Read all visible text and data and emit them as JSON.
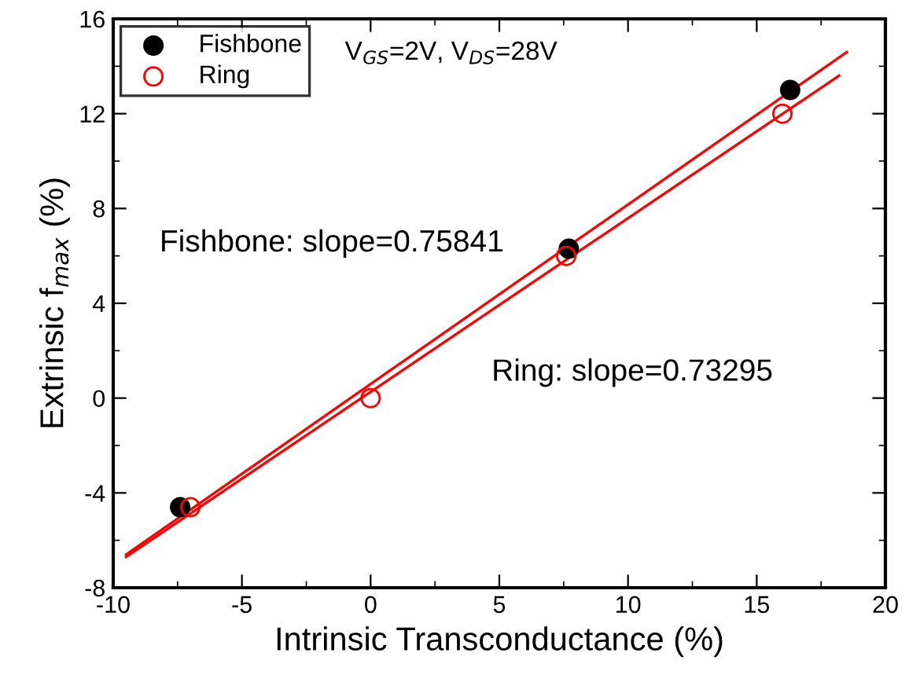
{
  "chart_data": {
    "type": "scatter",
    "xlabel": "Intrinsic Transconductance (%)",
    "ylabel": "Extrinsic f$_{max}$ (%)",
    "xlim": [
      -10,
      20
    ],
    "xticks": [
      -10,
      -5,
      0,
      5,
      10,
      15,
      20
    ],
    "ylim": [
      -8,
      16
    ],
    "yticks": [
      -8,
      -4,
      0,
      4,
      8,
      12,
      16
    ],
    "grid": false,
    "legend": "top left",
    "series": [
      {
        "name": "Fishbone",
        "marker": "circle",
        "color": "#000000",
        "x": [
          -7.4,
          7.7,
          16.3
        ],
        "values": [
          -4.6,
          6.3,
          13.0
        ]
      },
      {
        "name": "Ring",
        "marker": "circle",
        "color": "#ff0000",
        "x": [
          -7.0,
          0.0,
          7.6,
          16.0
        ],
        "values": [
          -4.6,
          0.0,
          6.0,
          12.0
        ]
      },
      {
        "type": "line",
        "color": "#ff0000",
        "x": [
          -9.5,
          18.5
        ],
        "values": [
          -6.6,
          14.6
        ]
      },
      {
        "type": "line",
        "color": "#ff0000",
        "x": [
          -9.5,
          18.2
        ],
        "values": [
          -6.7,
          13.6
        ]
      }
    ],
    "annotations": [
      "V$_{GS}$=2V, V$_{DS}$=28V",
      "Fishbone: slope=0.75841",
      "Ring: slope=0.73295"
    ]
  }
}
